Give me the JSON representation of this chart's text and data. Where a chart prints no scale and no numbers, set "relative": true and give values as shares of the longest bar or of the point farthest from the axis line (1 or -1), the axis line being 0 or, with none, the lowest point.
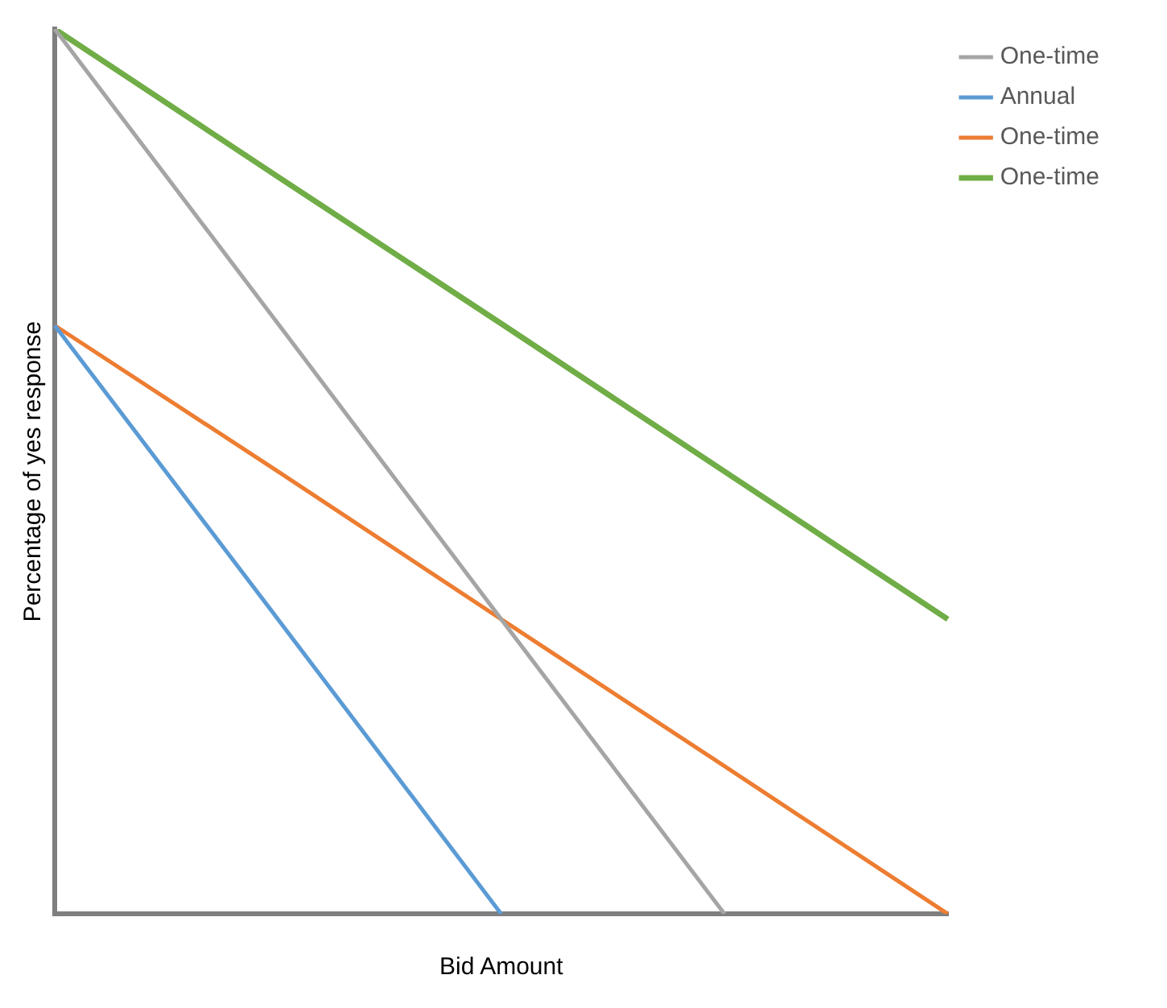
{
  "chart_data": {
    "type": "line",
    "relative": true,
    "xlabel": "Bid Amount",
    "ylabel": "Percentage of yes response",
    "categories": [
      null,
      null,
      null,
      null,
      null
    ],
    "grid": false,
    "legend": "right",
    "marker": "none",
    "line_style": "solid",
    "series": [
      {
        "name": "One-time",
        "color": "#a5a5a5",
        "values": [
          1,
          0.667,
          0.333,
          0,
          null
        ]
      },
      {
        "name": "Annual",
        "color": "#5b9bd5",
        "values": [
          0.665,
          0.333,
          0,
          null,
          null
        ]
      },
      {
        "name": "One-time",
        "color": "#ed7d31",
        "values": [
          0.665,
          0.5,
          0.333,
          0.167,
          0
        ]
      },
      {
        "name": "One-time",
        "color": "#70ad47",
        "values": [
          1,
          0.833,
          0.667,
          0.5,
          0.333
        ]
      }
    ]
  }
}
